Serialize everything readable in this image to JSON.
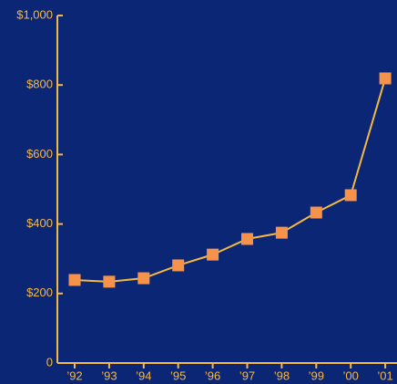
{
  "chart_data": {
    "type": "line",
    "categories": [
      "’92",
      "’93",
      "’94",
      "’95",
      "’96",
      "’97",
      "’98",
      "’99",
      "’00",
      "’01"
    ],
    "values": [
      239,
      234,
      244,
      281,
      312,
      357,
      375,
      433,
      483,
      819
    ],
    "line_color": "#f5b942",
    "marker_color": "#f7924a",
    "axis_color": "#f5b942",
    "background": "#0c2676",
    "ylim": [
      0,
      1000
    ],
    "yticks": [
      0,
      {
        "value": 200,
        "label": "$200"
      },
      {
        "value": 400,
        "label": "$400"
      },
      {
        "value": 600,
        "label": "$600"
      },
      {
        "value": 800,
        "label": "$800"
      },
      {
        "value": 1000,
        "label": "$1,000"
      }
    ],
    "grid": false
  }
}
